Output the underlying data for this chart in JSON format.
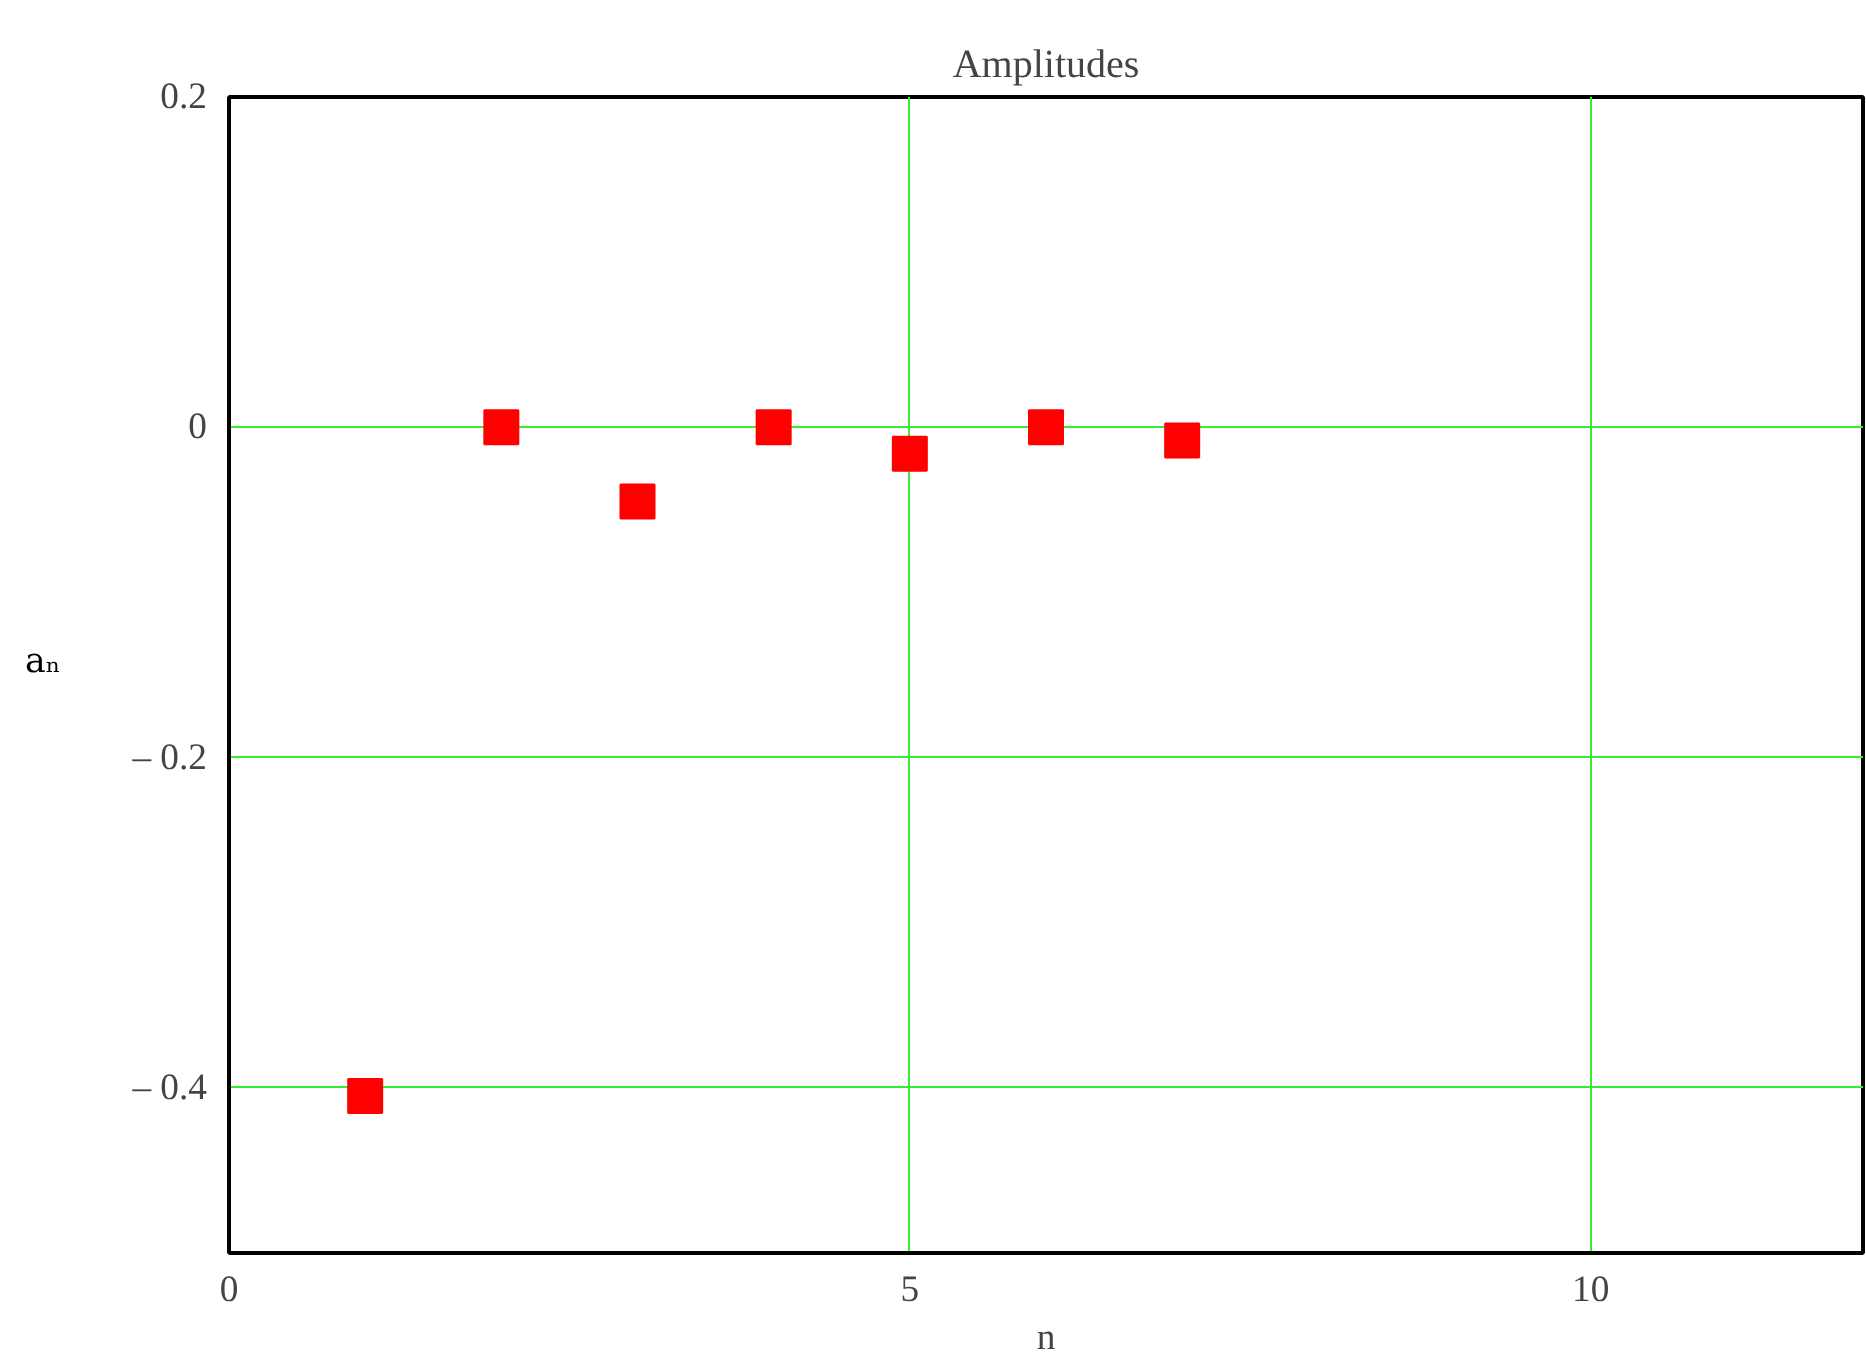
{
  "chart_data": {
    "type": "scatter",
    "title": "Amplitudes",
    "xlabel": "n",
    "ylabel": "aₙ",
    "x": [
      1,
      2,
      3,
      4,
      5,
      6,
      7
    ],
    "series": [
      {
        "color": "#ff0000",
        "values": [
          -0.405,
          0,
          -0.045,
          0,
          -0.016,
          0,
          -0.008
        ]
      }
    ],
    "marker": "square",
    "xlim": [
      0,
      12
    ],
    "ylim": [
      -0.5,
      0.2
    ],
    "xticks": [
      0,
      5,
      10
    ],
    "yticks": [
      {
        "value": 0.2,
        "label": "0.2"
      },
      {
        "value": 0,
        "label": "0"
      },
      {
        "value": -0.2,
        "label": "– 0.2"
      },
      {
        "value": -0.4,
        "label": "– 0.4"
      }
    ],
    "grid": true
  }
}
